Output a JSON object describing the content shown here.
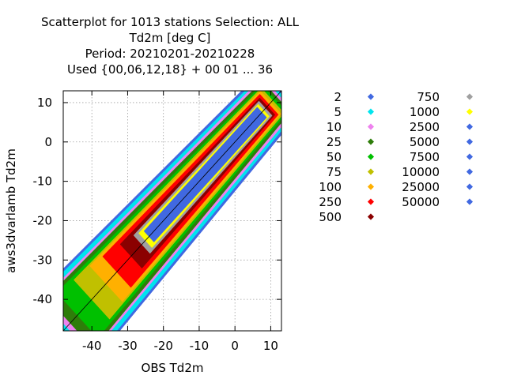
{
  "title": {
    "line1": "Scatterplot for 1013 stations Selection: ALL",
    "line2": "Td2m [deg C]",
    "line3": "Period: 20210201-20210228",
    "line4": "Used {00,06,12,18} + 00 01 ... 36"
  },
  "chart_data": {
    "type": "scatter",
    "xlabel": "OBS Td2m",
    "ylabel": "aws3dvarlamb Td2m",
    "xlim": [
      -48,
      13
    ],
    "ylim": [
      -48,
      13
    ],
    "xticks": [
      "-40",
      "-30",
      "-20",
      "-10",
      "0",
      "10"
    ],
    "xtick_values": [
      -40,
      -30,
      -20,
      -10,
      0,
      10
    ],
    "yticks": [
      "-40",
      "-30",
      "-20",
      "-10",
      "0",
      "10"
    ],
    "ytick_values": [
      -40,
      -30,
      -20,
      -10,
      0,
      10
    ],
    "grid": true,
    "diagonal_line": true,
    "legend_placement": "right",
    "density_levels": [
      {
        "label": "2",
        "value": 2,
        "color": "#4169e1"
      },
      {
        "label": "5",
        "value": 5,
        "color": "#00e5ee"
      },
      {
        "label": "10",
        "value": 10,
        "color": "#ee82ee"
      },
      {
        "label": "25",
        "value": 25,
        "color": "#2e7d0a"
      },
      {
        "label": "50",
        "value": 50,
        "color": "#00c000"
      },
      {
        "label": "75",
        "value": 75,
        "color": "#c0c000"
      },
      {
        "label": "100",
        "value": 100,
        "color": "#ffb000"
      },
      {
        "label": "250",
        "value": 250,
        "color": "#ff0000"
      },
      {
        "label": "500",
        "value": 500,
        "color": "#8b0000"
      },
      {
        "label": "750",
        "value": 750,
        "color": "#a0a0a0"
      },
      {
        "label": "1000",
        "value": 1000,
        "color": "#ffff00"
      },
      {
        "label": "2500",
        "value": 2500,
        "color": "#4169e1"
      },
      {
        "label": "5000",
        "value": 5000,
        "color": "#4169e1"
      },
      {
        "label": "7500",
        "value": 7500,
        "color": "#4169e1"
      },
      {
        "label": "10000",
        "value": 10000,
        "color": "#4169e1"
      },
      {
        "label": "25000",
        "value": 25000,
        "color": "#4169e1"
      },
      {
        "label": "50000",
        "value": 50000,
        "color": "#4169e1"
      }
    ]
  }
}
